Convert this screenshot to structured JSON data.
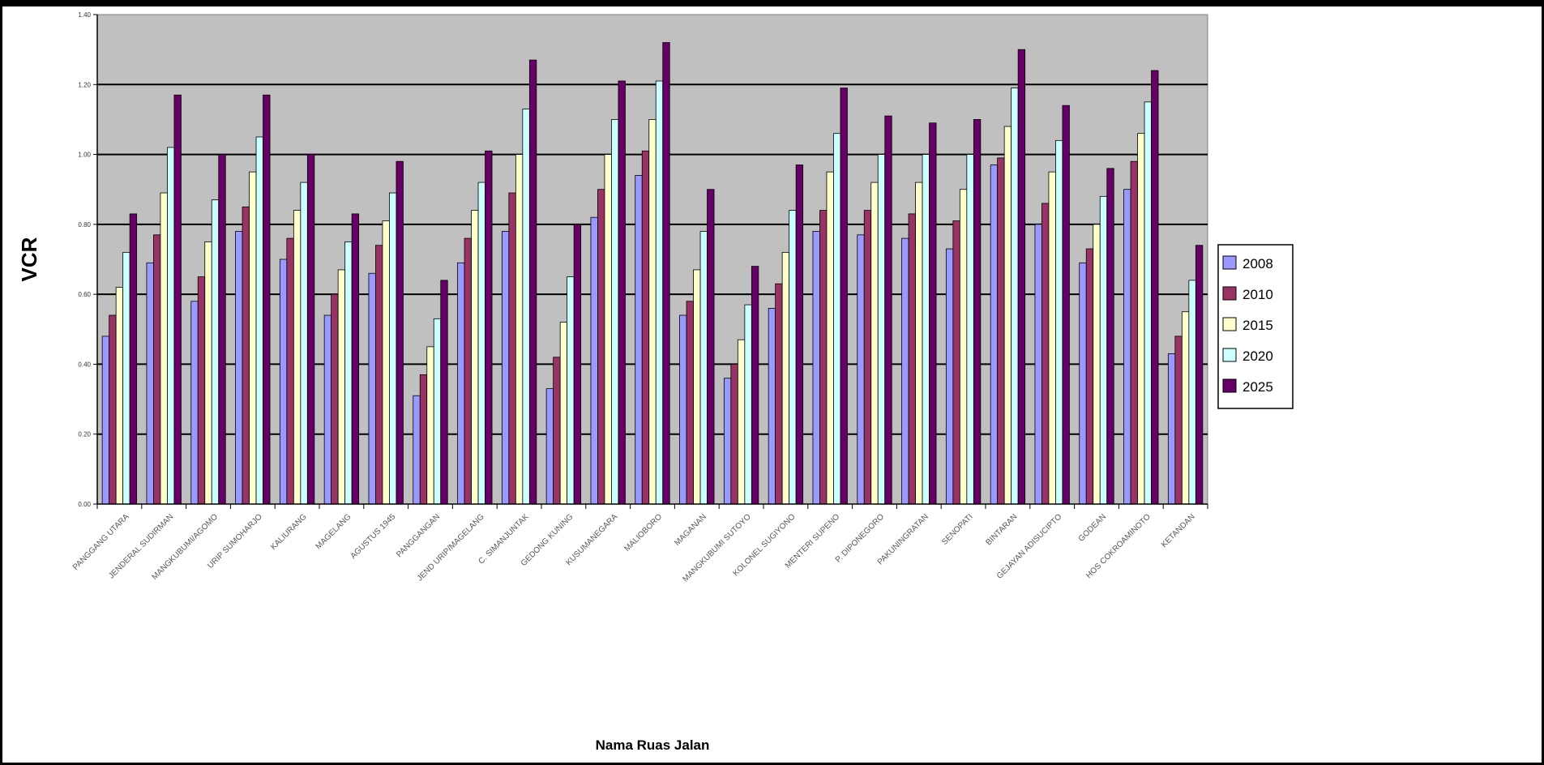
{
  "chart_data": {
    "type": "bar",
    "ylabel": "VCR",
    "xlabel": "Nama Ruas Jalan",
    "ylim": [
      0,
      1.4
    ],
    "yticks": [
      "0.00",
      "0.20",
      "0.40",
      "0.60",
      "0.80",
      "1.00",
      "1.20",
      "1.40"
    ],
    "grid": true,
    "legend_position": "right",
    "categories": [
      "PANGGANG UTARA",
      "JENDERAL SUDIRMAN",
      "MANGKUBUMI/AGOMO",
      "URIP SUMOHARJO",
      "KALIURANG",
      "MAGELANG",
      "AGUSTUS 1945",
      "PANGGANGAN",
      "JEND URIP/MAGELANG",
      "C. SIMANJUNTAK",
      "GEDONG KUNING",
      "KUSUMANEGARA",
      "MALIOBORO",
      "MAGANAN",
      "MANGKUBUMI SUTOYO",
      "KOLONEL SUGIYONO",
      "MENTERI SUPENO",
      "P. DIPONEGORO",
      "PAKUNINGRATAN",
      "SENOPATI",
      "BINTARAN",
      "GEJAYAN ADISUCIPTO",
      "GODEAN",
      "HOS COKROAMINOTO",
      "KETANDAN"
    ],
    "series": [
      {
        "name": "2008",
        "color": "#9999ff",
        "values": [
          0.48,
          0.69,
          0.58,
          0.78,
          0.7,
          0.54,
          0.66,
          0.31,
          0.69,
          0.78,
          0.33,
          0.82,
          0.94,
          0.54,
          0.36,
          0.56,
          0.78,
          0.77,
          0.76,
          0.73,
          0.97,
          0.8,
          0.69,
          0.9,
          0.43
        ]
      },
      {
        "name": "2010",
        "color": "#993366",
        "values": [
          0.54,
          0.77,
          0.65,
          0.85,
          0.76,
          0.6,
          0.74,
          0.37,
          0.76,
          0.89,
          0.42,
          0.9,
          1.01,
          0.58,
          0.4,
          0.63,
          0.84,
          0.84,
          0.83,
          0.81,
          0.99,
          0.86,
          0.73,
          0.98,
          0.48
        ]
      },
      {
        "name": "2015",
        "color": "#ffffcc",
        "values": [
          0.62,
          0.89,
          0.75,
          0.95,
          0.84,
          0.67,
          0.81,
          0.45,
          0.84,
          1.0,
          0.52,
          1.0,
          1.1,
          0.67,
          0.47,
          0.72,
          0.95,
          0.92,
          0.92,
          0.9,
          1.08,
          0.95,
          0.8,
          1.06,
          0.55
        ]
      },
      {
        "name": "2020",
        "color": "#ccffff",
        "values": [
          0.72,
          1.02,
          0.87,
          1.05,
          0.92,
          0.75,
          0.89,
          0.53,
          0.92,
          1.13,
          0.65,
          1.1,
          1.21,
          0.78,
          0.57,
          0.84,
          1.06,
          1.0,
          1.0,
          1.0,
          1.19,
          1.04,
          0.88,
          1.15,
          0.64
        ]
      },
      {
        "name": "2025",
        "color": "#660066",
        "values": [
          0.83,
          1.17,
          1.0,
          1.17,
          1.0,
          0.83,
          0.98,
          0.64,
          1.01,
          1.27,
          0.8,
          1.21,
          1.32,
          0.9,
          0.68,
          0.97,
          1.19,
          1.11,
          1.09,
          1.1,
          1.3,
          1.14,
          0.96,
          1.24,
          0.74
        ]
      }
    ]
  }
}
